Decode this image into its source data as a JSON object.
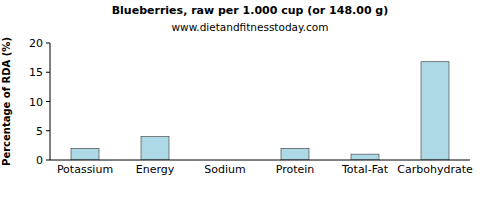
{
  "chart_data": {
    "type": "bar",
    "title": "Blueberries, raw per 1.000 cup (or 148.00 g)",
    "subtitle": "www.dietandfitnesstoday.com",
    "y_label": "Percentage of RDA (%)",
    "categories": [
      "Potassium",
      "Energy",
      "Sodium",
      "Protein",
      "Total-Fat",
      "Carbohydrate"
    ],
    "values": [
      2,
      4,
      0,
      2,
      1,
      16.8
    ],
    "color": "#add8e6",
    "ylim": [
      0,
      20
    ],
    "yticks": [
      0,
      5,
      10,
      15,
      20
    ],
    "grid": false
  }
}
